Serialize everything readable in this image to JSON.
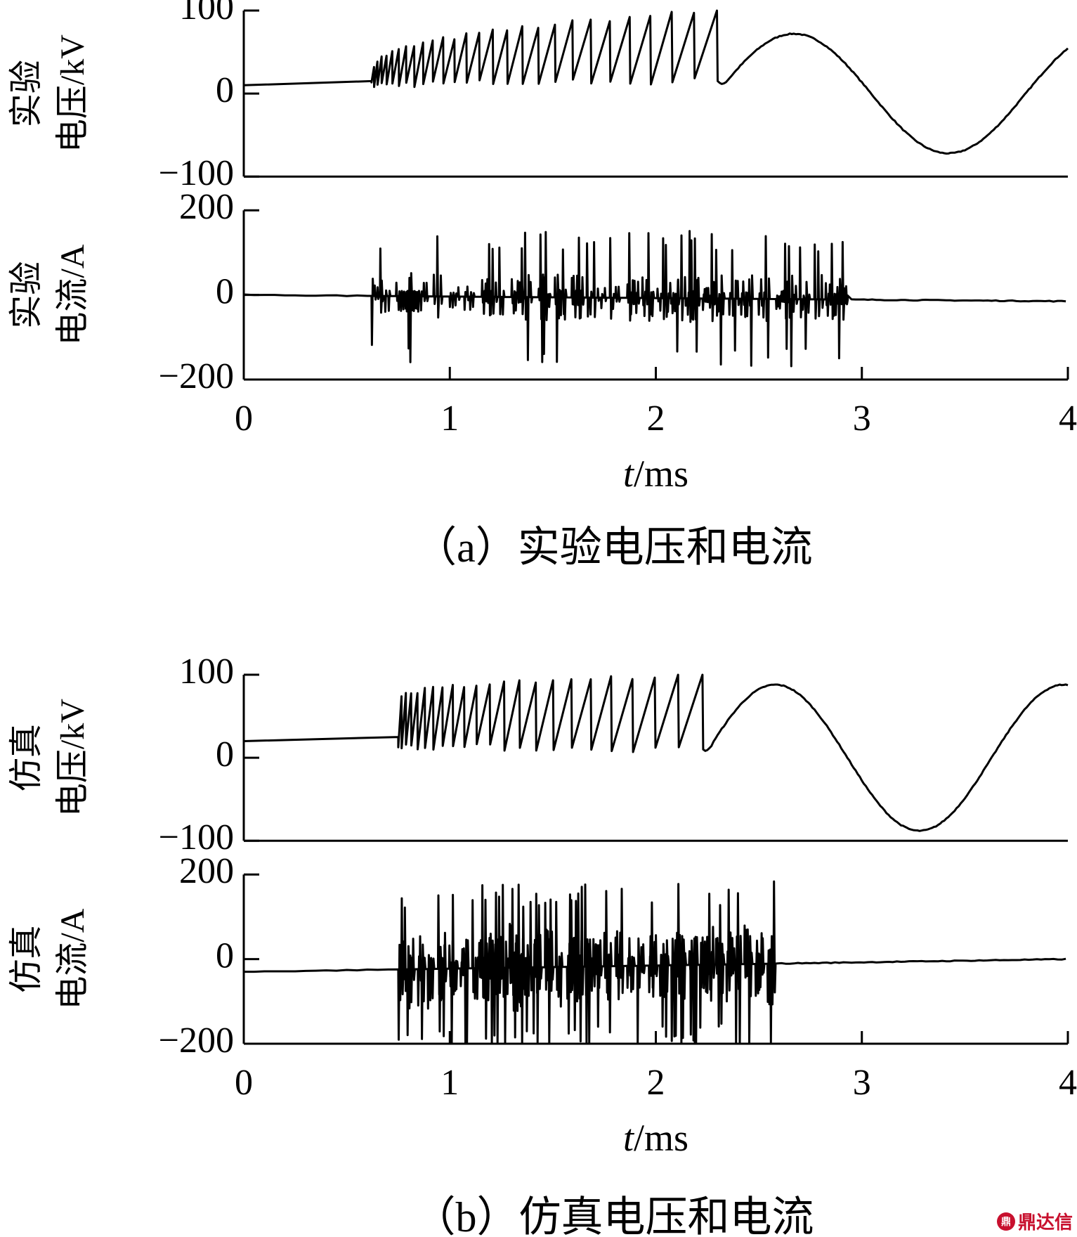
{
  "chart_data": [
    {
      "type": "line",
      "caption": "（a）实验电压和电流",
      "xlabel_italic": "t",
      "xlabel_rest": "/ms",
      "xticks": [
        "0",
        "1",
        "2",
        "3",
        "4"
      ],
      "xlim": [
        0,
        4
      ],
      "panels": [
        {
          "ylabel_line1": "实验",
          "ylabel_line2": "电压/kV",
          "ylim": [
            -100,
            100
          ],
          "yticks": [
            "100",
            "0",
            "−100"
          ],
          "series": [
            {
              "kind": "voltage",
              "baseline": 10,
              "start_ms": 0.62,
              "end_ms": 2.3,
              "peak_first": 35,
              "peak_last": 100,
              "reset_first": 10,
              "reset_last": 15,
              "spikes": 27,
              "sine_amplitude": 72,
              "sine_period_ms": 1.5,
              "sine_peak_ms": 2.67
            }
          ]
        },
        {
          "ylabel_line1": "实验",
          "ylabel_line2": "电流/A",
          "ylim": [
            -200,
            200
          ],
          "yticks": [
            "200",
            "0",
            "−200"
          ],
          "series": [
            {
              "kind": "current",
              "baseline_start": 0,
              "baseline_end": -15,
              "burst_start_ms": 0.62,
              "burst_end_ms": 2.93,
              "pulse_amplitude": 160,
              "ringing_amplitude": 60,
              "pulses": 34
            }
          ]
        }
      ]
    },
    {
      "type": "line",
      "caption": "（b）仿真电压和电流",
      "xlabel_italic": "t",
      "xlabel_rest": "/ms",
      "xticks": [
        "0",
        "1",
        "2",
        "3",
        "4"
      ],
      "xlim": [
        0,
        4
      ],
      "panels": [
        {
          "ylabel_line1": "仿真",
          "ylabel_line2": "电压/kV",
          "ylim": [
            -100,
            100
          ],
          "yticks": [
            "100",
            "0",
            "−100"
          ],
          "series": [
            {
              "kind": "voltage",
              "baseline": 20,
              "start_ms": 0.75,
              "end_ms": 2.23,
              "peak_first": 75,
              "peak_last": 100,
              "reset_first": 15,
              "reset_last": 10,
              "spikes": 22,
              "sine_amplitude": 88,
              "sine_period_ms": 1.4,
              "sine_peak_ms": 2.58
            }
          ]
        },
        {
          "ylabel_line1": "仿真",
          "ylabel_line2": "电流/A",
          "ylim": [
            -200,
            200
          ],
          "yticks": [
            "200",
            "0",
            "−200"
          ],
          "series": [
            {
              "kind": "current",
              "baseline_start": -30,
              "baseline_end": 0,
              "burst_start_ms": 0.75,
              "burst_end_ms": 2.55,
              "pulse_amplitude": 200,
              "ringing_amplitude": 110,
              "pulses": 40
            }
          ]
        }
      ]
    }
  ],
  "watermark": {
    "text": "鼎达信",
    "icon": "dingdaxin-logo-icon",
    "color": "#c8102e"
  }
}
